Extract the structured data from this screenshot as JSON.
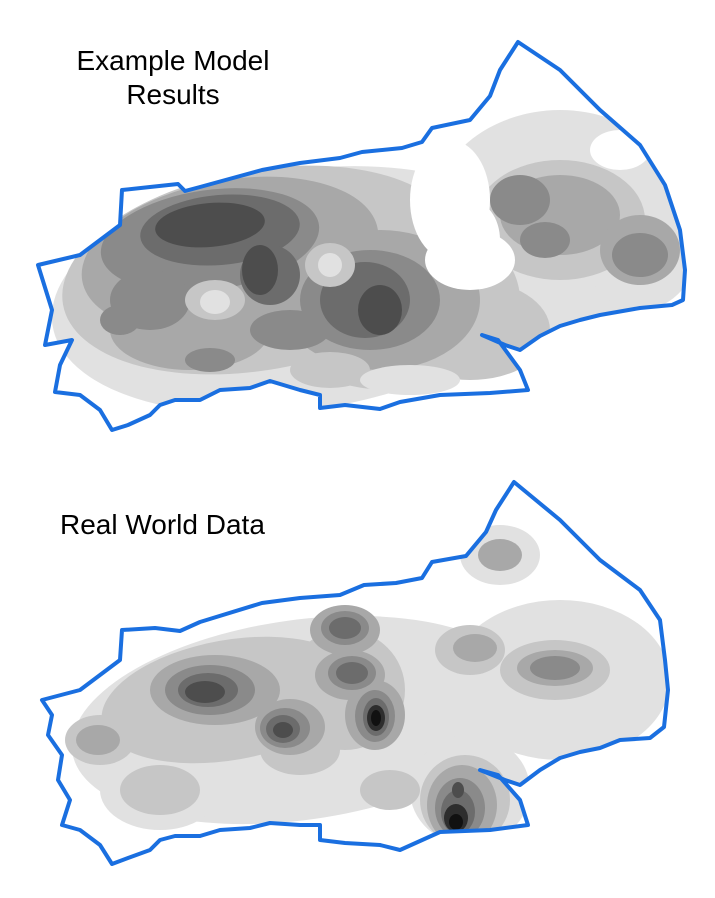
{
  "panels": [
    {
      "title_line1": "Example Model",
      "title_line2": "Results"
    },
    {
      "title": "Real World Data"
    }
  ],
  "colors": {
    "boundary": "#1a6fe0",
    "levels": [
      "#ffffff",
      "#e1e1e1",
      "#c6c6c6",
      "#a8a8a8",
      "#8a8a8a",
      "#6c6c6c",
      "#4d4d4d",
      "#2e2e2e",
      "#111111"
    ]
  }
}
